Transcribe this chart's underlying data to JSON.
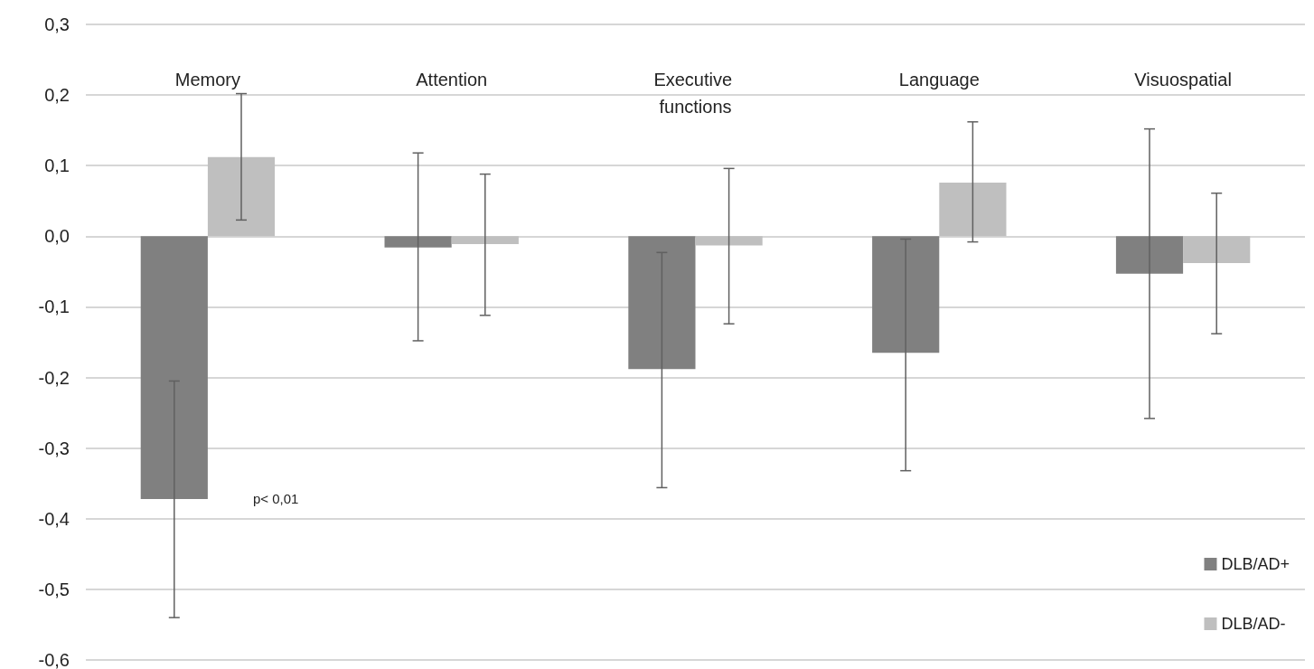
{
  "chart_data": {
    "type": "bar",
    "categories": [
      "Memory",
      "Attention",
      "Executive functions",
      "Language",
      "Visuospatial"
    ],
    "series": [
      {
        "name": "DLB/AD+",
        "color": "#808080",
        "values": [
          -0.372,
          -0.016,
          -0.188,
          -0.165,
          -0.053
        ],
        "errors": [
          [
            -0.54,
            -0.205
          ],
          [
            -0.148,
            0.118
          ],
          [
            -0.356,
            -0.023
          ],
          [
            -0.332,
            -0.004
          ],
          [
            -0.258,
            0.152
          ]
        ]
      },
      {
        "name": "DLB/AD-",
        "color": "#bfbfbf",
        "values": [
          0.112,
          -0.011,
          -0.013,
          0.076,
          -0.038
        ],
        "errors": [
          [
            0.023,
            0.202
          ],
          [
            -0.112,
            0.088
          ],
          [
            -0.124,
            0.096
          ],
          [
            -0.008,
            0.162
          ],
          [
            -0.138,
            0.061
          ]
        ]
      }
    ],
    "ylim": [
      -0.6,
      0.3
    ],
    "yticks": [
      {
        "value": -0.6,
        "label": "-0,6"
      },
      {
        "value": -0.5,
        "label": "-0,5"
      },
      {
        "value": -0.4,
        "label": "-0,4"
      },
      {
        "value": -0.3,
        "label": "-0,3"
      },
      {
        "value": -0.2,
        "label": "-0,2"
      },
      {
        "value": -0.1,
        "label": "-0,1"
      },
      {
        "value": 0,
        "label": "0,0"
      },
      {
        "value": 0.1,
        "label": "0,1"
      },
      {
        "value": 0.2,
        "label": "0,2"
      },
      {
        "value": 0.3,
        "label": "0,3"
      }
    ],
    "annotations": [
      "p< 0,01"
    ],
    "grid": "y",
    "legend": "bottom right"
  }
}
